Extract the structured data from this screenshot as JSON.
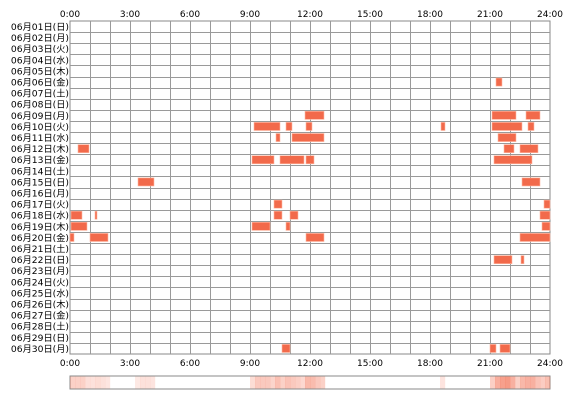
{
  "chart_data": {
    "type": "heatmap",
    "x_unit": "hours",
    "xlim": [
      0,
      24
    ],
    "x_ticks": [
      "0:00",
      "3:00",
      "6:00",
      "9:00",
      "12:00",
      "15:00",
      "18:00",
      "21:00",
      "24:00"
    ],
    "rows": [
      "06月01日(日)",
      "06月02日(月)",
      "06月03日(火)",
      "06月04日(水)",
      "06月05日(木)",
      "06月06日(金)",
      "06月07日(土)",
      "06月08日(日)",
      "06月09日(月)",
      "06月10日(火)",
      "06月11日(水)",
      "06月12日(木)",
      "06月13日(金)",
      "06月14日(土)",
      "06月15日(日)",
      "06月16日(月)",
      "06月17日(火)",
      "06月18日(水)",
      "06月19日(木)",
      "06月20日(金)",
      "06月21日(土)",
      "06月22日(日)",
      "06月23日(月)",
      "06月24日(火)",
      "06月25日(水)",
      "06月26日(木)",
      "06月27日(金)",
      "06月28日(土)",
      "06月29日(日)",
      "06月30日(月)"
    ],
    "grid": true,
    "bar_color": "#f26a4b",
    "bar_edge_color": "#ffb9a3",
    "density_color": "#f26a4b",
    "events": [
      {
        "row": 5,
        "start": 21.3,
        "end": 21.6
      },
      {
        "row": 8,
        "start": 11.75,
        "end": 12.7
      },
      {
        "row": 8,
        "start": 21.1,
        "end": 22.3
      },
      {
        "row": 8,
        "start": 22.8,
        "end": 23.5
      },
      {
        "row": 9,
        "start": 9.2,
        "end": 10.5
      },
      {
        "row": 9,
        "start": 10.8,
        "end": 11.1
      },
      {
        "row": 9,
        "start": 11.8,
        "end": 12.1
      },
      {
        "row": 9,
        "start": 18.55,
        "end": 18.75
      },
      {
        "row": 9,
        "start": 21.1,
        "end": 22.6
      },
      {
        "row": 9,
        "start": 22.9,
        "end": 23.2
      },
      {
        "row": 10,
        "start": 10.3,
        "end": 10.5
      },
      {
        "row": 10,
        "start": 11.1,
        "end": 12.7
      },
      {
        "row": 10,
        "start": 21.4,
        "end": 22.3
      },
      {
        "row": 11,
        "start": 0.4,
        "end": 0.95
      },
      {
        "row": 11,
        "start": 21.7,
        "end": 22.2
      },
      {
        "row": 11,
        "start": 22.5,
        "end": 23.4
      },
      {
        "row": 12,
        "start": 9.1,
        "end": 10.2
      },
      {
        "row": 12,
        "start": 10.5,
        "end": 11.7
      },
      {
        "row": 12,
        "start": 11.8,
        "end": 12.2
      },
      {
        "row": 12,
        "start": 21.2,
        "end": 23.1
      },
      {
        "row": 14,
        "start": 3.4,
        "end": 4.2
      },
      {
        "row": 14,
        "start": 22.6,
        "end": 23.5
      },
      {
        "row": 16,
        "start": 10.2,
        "end": 10.6
      },
      {
        "row": 16,
        "start": 23.7,
        "end": 24.0
      },
      {
        "row": 17,
        "start": 0.05,
        "end": 0.6
      },
      {
        "row": 17,
        "start": 1.25,
        "end": 1.35
      },
      {
        "row": 17,
        "start": 10.2,
        "end": 10.6
      },
      {
        "row": 17,
        "start": 11.0,
        "end": 11.4
      },
      {
        "row": 17,
        "start": 23.5,
        "end": 24.0
      },
      {
        "row": 18,
        "start": 0.05,
        "end": 0.85
      },
      {
        "row": 18,
        "start": 9.1,
        "end": 10.0
      },
      {
        "row": 18,
        "start": 10.8,
        "end": 11.0
      },
      {
        "row": 18,
        "start": 23.6,
        "end": 24.0
      },
      {
        "row": 19,
        "start": 0.0,
        "end": 0.2
      },
      {
        "row": 19,
        "start": 1.0,
        "end": 1.9
      },
      {
        "row": 19,
        "start": 11.8,
        "end": 12.7
      },
      {
        "row": 19,
        "start": 22.5,
        "end": 24.0
      },
      {
        "row": 21,
        "start": 21.2,
        "end": 22.1
      },
      {
        "row": 21,
        "start": 22.55,
        "end": 22.7
      },
      {
        "row": 29,
        "start": 10.6,
        "end": 11.0
      },
      {
        "row": 29,
        "start": 21.0,
        "end": 21.3
      },
      {
        "row": 29,
        "start": 21.5,
        "end": 22.0
      }
    ]
  }
}
